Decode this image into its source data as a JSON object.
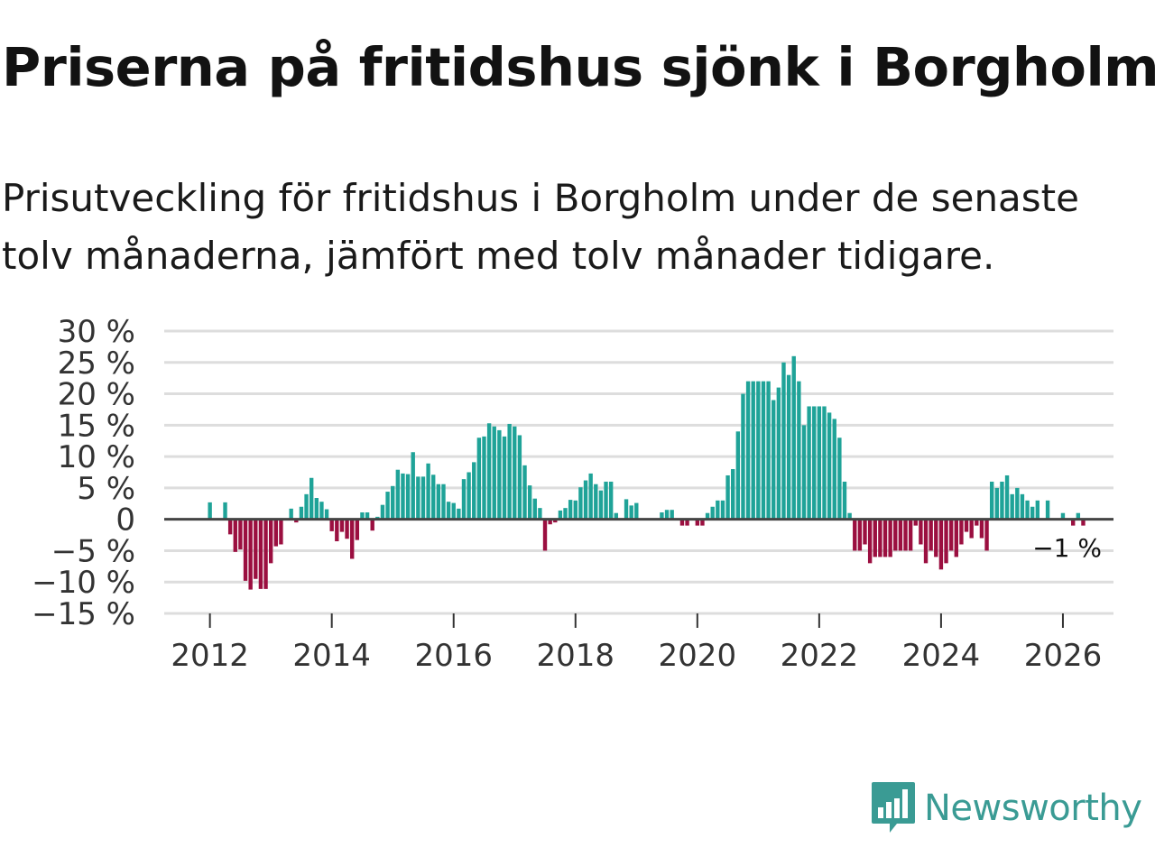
{
  "title": "Priserna på fritidshus sjönk i Borgholm",
  "subtitle": "Prisutveckling för fritidshus i Borgholm under de senaste tolv månaderna, jämfört med tolv månader tidigare.",
  "logo_text": "Newsworthy",
  "colors": {
    "positive": "#1fa398",
    "negative": "#9b0f40",
    "grid": "#dddddd",
    "zero": "#444444",
    "brand": "#3a9b94"
  },
  "chart_data": {
    "type": "bar",
    "title": "Priserna på fritidshus sjönk i Borgholm",
    "xlabel": "",
    "ylabel": "",
    "ylim": [
      -15,
      30
    ],
    "xlim": [
      2011.25,
      2026.83
    ],
    "yticks": [
      30,
      25,
      20,
      15,
      10,
      5,
      0,
      -5,
      -10,
      -15
    ],
    "ytick_labels": [
      "30 %",
      "25 %",
      "20 %",
      "15 %",
      "10 %",
      "5 %",
      "0",
      "−5 %",
      "−10 %",
      "−15 %"
    ],
    "xticks": [
      2012,
      2014,
      2016,
      2018,
      2020,
      2022,
      2024,
      2026
    ],
    "xtick_labels": [
      "2012",
      "2014",
      "2016",
      "2018",
      "2020",
      "2022",
      "2024",
      "2026"
    ],
    "start": [
      2012,
      1
    ],
    "end_label": "−1 %",
    "values": [
      2.7,
      0,
      0,
      2.7,
      -2.4,
      -5.2,
      -4.8,
      -9.8,
      -11.2,
      -9.5,
      -11.1,
      -11.1,
      -7,
      -4.3,
      -4,
      0,
      1.7,
      -0.5,
      2,
      4,
      6.6,
      3.4,
      2.8,
      1.6,
      -1.9,
      -3.5,
      -2,
      -3.1,
      -6.3,
      -3.3,
      1.1,
      1.1,
      -1.8,
      0.4,
      2.3,
      4.4,
      5.3,
      7.9,
      7.3,
      7.2,
      10.7,
      6.8,
      6.8,
      8.9,
      7.1,
      5.6,
      5.6,
      2.8,
      2.6,
      1.7,
      6.4,
      7.5,
      9.1,
      13,
      13.2,
      15.3,
      14.8,
      14.2,
      13.2,
      15.2,
      14.8,
      13.4,
      8.6,
      5.4,
      3.3,
      1.8,
      -5,
      -0.8,
      -0.5,
      1.4,
      1.8,
      3.1,
      3,
      5.1,
      6.2,
      7.3,
      5.6,
      4.6,
      6,
      6,
      1,
      0,
      3.2,
      2.2,
      2.6,
      0,
      0,
      0,
      0,
      1.1,
      1.5,
      1.5,
      0,
      -1,
      -1,
      0,
      -1,
      -1,
      1,
      2,
      3,
      3,
      7,
      8,
      14,
      20,
      22,
      22,
      22,
      22,
      22,
      19,
      21,
      25,
      23,
      26,
      22,
      15,
      18,
      18,
      18,
      18,
      17,
      16,
      13,
      6,
      1,
      -5,
      -5,
      -4,
      -7,
      -6,
      -6,
      -6,
      -6,
      -5,
      -5,
      -5,
      -5,
      -1,
      -4,
      -7,
      -5,
      -6,
      -8,
      -7,
      -5,
      -6,
      -4,
      -2,
      -3,
      -1,
      -3,
      -5,
      6,
      5,
      6,
      7,
      4,
      5,
      4,
      3,
      2,
      3,
      0,
      3,
      0,
      0,
      1,
      0,
      -1,
      1,
      -1
    ]
  }
}
